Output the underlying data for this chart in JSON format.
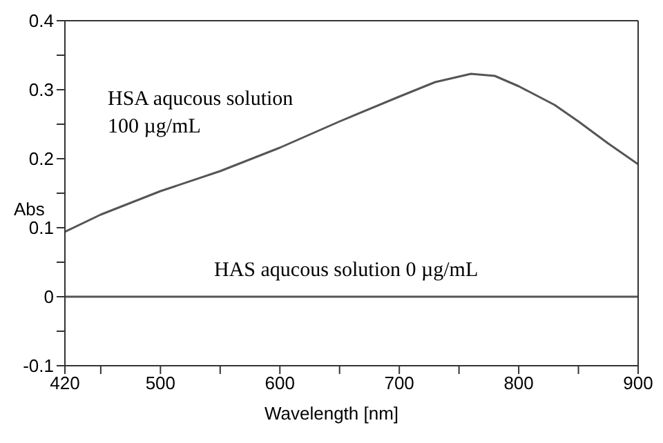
{
  "chart_data": {
    "type": "line",
    "xlabel": "Wavelength [nm]",
    "ylabel": "Abs",
    "xlim": [
      420,
      900
    ],
    "ylim": [
      -0.1,
      0.4
    ],
    "xticks": [
      420,
      {
        "value": 450,
        "label": null
      },
      500,
      {
        "value": 550,
        "label": null
      },
      600,
      {
        "value": 650,
        "label": null
      },
      700,
      {
        "value": 750,
        "label": null
      },
      800,
      {
        "value": 850,
        "label": null
      },
      900
    ],
    "yticks": [
      -0.1,
      {
        "value": -0.05,
        "label": null
      },
      0,
      {
        "value": 0.05,
        "label": null
      },
      0.1,
      {
        "value": 0.15,
        "label": null
      },
      0.2,
      {
        "value": 0.25,
        "label": null
      },
      0.3,
      {
        "value": 0.35,
        "label": null
      },
      0.4
    ],
    "marker": "none",
    "line_style": "solid",
    "series": [
      {
        "name": "HSA aqucous solution\n100 µg/mL",
        "color": "#555555",
        "x": [
          420,
          450,
          500,
          550,
          600,
          650,
          700,
          730,
          760,
          780,
          800,
          830,
          850,
          875,
          900
        ],
        "values": [
          0.094,
          0.119,
          0.153,
          0.182,
          0.216,
          0.254,
          0.29,
          0.311,
          0.323,
          0.32,
          0.305,
          0.278,
          0.254,
          0.222,
          0.192
        ]
      },
      {
        "name": "HAS aqucous solution 0 µg/mL",
        "color": "#555555",
        "x": [
          420,
          900
        ],
        "values": [
          0,
          0
        ]
      }
    ]
  }
}
